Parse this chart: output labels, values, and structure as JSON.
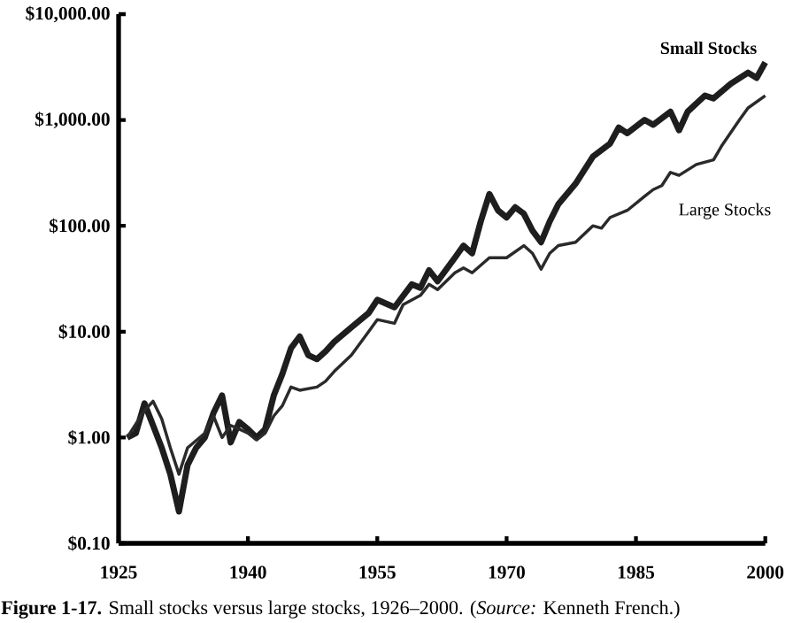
{
  "chart_data": {
    "type": "line",
    "log": "y",
    "xlim": [
      1925,
      2000
    ],
    "xticks": [
      1925,
      1940,
      1955,
      1970,
      1985,
      2000
    ],
    "ylim": [
      0.1,
      10000
    ],
    "yticks": [
      {
        "value": 0.1,
        "label": "$0.10"
      },
      {
        "value": 1,
        "label": "$1.00"
      },
      {
        "value": 10,
        "label": "$10.00"
      },
      {
        "value": 100,
        "label": "$100.00"
      },
      {
        "value": 1000,
        "label": "$1,000.00"
      },
      {
        "value": 10000,
        "label": "$10,000.00"
      }
    ],
    "series": [
      {
        "name": "Small Stocks",
        "color": "#1e1e1e",
        "x": [
          1926,
          1927,
          1928,
          1929,
          1930,
          1931,
          1932,
          1933,
          1934,
          1935,
          1936,
          1937,
          1938,
          1939,
          1940,
          1941,
          1942,
          1943,
          1944,
          1945,
          1946,
          1947,
          1948,
          1949,
          1950,
          1952,
          1954,
          1955,
          1957,
          1959,
          1960,
          1961,
          1962,
          1964,
          1965,
          1966,
          1967,
          1968,
          1969,
          1970,
          1971,
          1972,
          1973,
          1974,
          1975,
          1976,
          1978,
          1980,
          1982,
          1983,
          1984,
          1986,
          1987,
          1989,
          1990,
          1991,
          1993,
          1994,
          1996,
          1998,
          1999,
          2000
        ],
        "values": [
          1.0,
          1.1,
          2.1,
          1.3,
          0.8,
          0.45,
          0.2,
          0.55,
          0.8,
          1.0,
          1.7,
          2.5,
          0.9,
          1.4,
          1.2,
          1.0,
          1.2,
          2.5,
          4,
          7,
          9,
          6,
          5.5,
          6.5,
          8,
          11,
          15,
          20,
          17,
          28,
          26,
          38,
          30,
          50,
          65,
          55,
          110,
          200,
          140,
          120,
          150,
          130,
          90,
          70,
          110,
          160,
          250,
          450,
          600,
          850,
          750,
          1000,
          900,
          1200,
          800,
          1200,
          1700,
          1600,
          2200,
          2800,
          2500,
          3500
        ]
      },
      {
        "name": "Large Stocks",
        "color": "#2a2a2a",
        "x": [
          1926,
          1928,
          1929,
          1930,
          1931,
          1932,
          1933,
          1935,
          1936,
          1937,
          1938,
          1939,
          1940,
          1941,
          1942,
          1943,
          1944,
          1945,
          1946,
          1948,
          1949,
          1950,
          1952,
          1954,
          1955,
          1957,
          1958,
          1960,
          1961,
          1962,
          1964,
          1965,
          1966,
          1968,
          1970,
          1972,
          1973,
          1974,
          1975,
          1976,
          1978,
          1980,
          1981,
          1982,
          1984,
          1986,
          1987,
          1988,
          1989,
          1990,
          1992,
          1994,
          1995,
          1997,
          1998,
          2000
        ],
        "values": [
          1.0,
          1.8,
          2.2,
          1.5,
          0.8,
          0.45,
          0.8,
          1.1,
          1.6,
          1.0,
          1.3,
          1.2,
          1.1,
          0.95,
          1.1,
          1.6,
          2.0,
          3.0,
          2.8,
          3.0,
          3.4,
          4.2,
          6,
          10,
          13,
          12,
          18,
          22,
          28,
          25,
          36,
          40,
          36,
          50,
          50,
          65,
          55,
          39,
          55,
          65,
          70,
          100,
          95,
          120,
          140,
          190,
          220,
          240,
          320,
          300,
          380,
          420,
          580,
          1000,
          1300,
          1700
        ]
      }
    ],
    "annotations": [
      "**Figure 1-17.** Small stocks versus large stocks, 1926–2000. (*Source:* Kenneth French.)"
    ]
  }
}
